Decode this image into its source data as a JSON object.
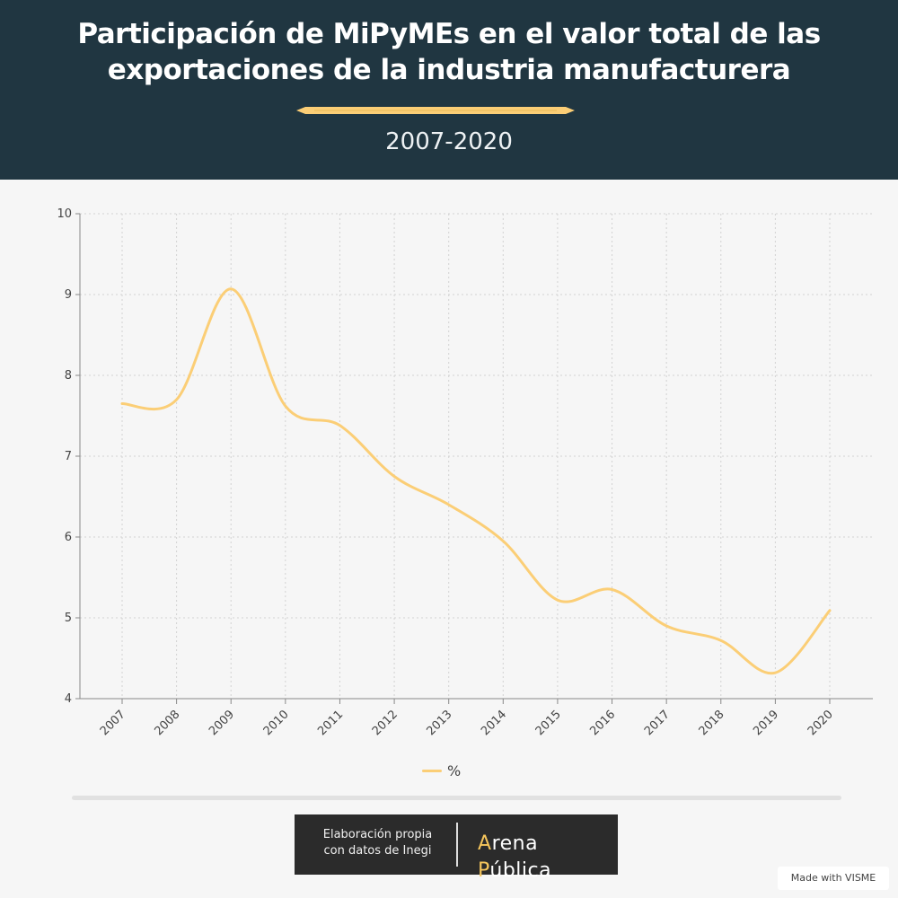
{
  "header": {
    "title": "Participación de MiPyMEs en el valor total de las exportaciones de la industria manufacturera",
    "subtitle": "2007-2020",
    "accent_color": "#fbce76",
    "background_color": "#203641"
  },
  "chart_data": {
    "type": "line",
    "categories": [
      "2007",
      "2008",
      "2009",
      "2010",
      "2011",
      "2012",
      "2013",
      "2014",
      "2015",
      "2016",
      "2017",
      "2018",
      "2019",
      "2020"
    ],
    "series": [
      {
        "name": "%",
        "color": "#fbce76",
        "values": [
          7.65,
          7.7,
          9.07,
          7.62,
          7.38,
          6.75,
          6.4,
          5.95,
          5.22,
          5.35,
          4.9,
          4.72,
          4.32,
          5.09
        ]
      }
    ],
    "yticks": [
      4,
      5,
      6,
      7,
      8,
      9,
      10
    ],
    "ylim": [
      4,
      10
    ],
    "grid": true,
    "legend": "bottom-center"
  },
  "footer": {
    "credit_line1": "Elaboración propia",
    "credit_line2": "con datos de Inegi",
    "brand_a": "A",
    "brand_rena": "rena ",
    "brand_p": "P",
    "brand_ublica": "ública",
    "visme": "Made with VISME"
  }
}
